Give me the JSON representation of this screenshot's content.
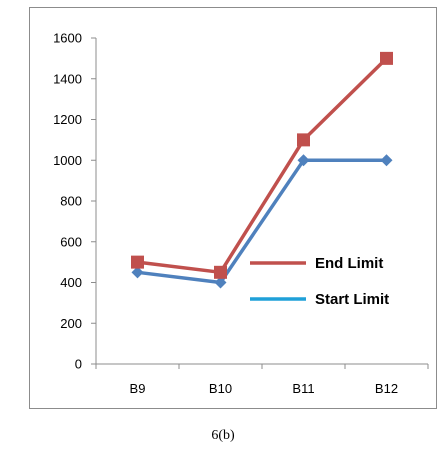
{
  "chart_data": {
    "type": "line",
    "categories": [
      "B9",
      "B10",
      "B11",
      "B12"
    ],
    "series": [
      {
        "name": "End Limit",
        "values": [
          500,
          450,
          1100,
          1500
        ],
        "color": "#c0504d",
        "marker": "square"
      },
      {
        "name": "Start Limit",
        "values": [
          450,
          400,
          1000,
          1000
        ],
        "color": "#4f81bd",
        "marker": "diamond"
      }
    ],
    "ylim": [
      0,
      1600
    ],
    "yticks": [
      0,
      200,
      400,
      600,
      800,
      1000,
      1200,
      1400,
      1600
    ],
    "legend_entries": [
      {
        "label": "End Limit",
        "color": "#c0504d"
      },
      {
        "label": "Start Limit",
        "color": "#1fa0d8"
      }
    ],
    "legend_position": "lower-right-inside",
    "grid": false
  },
  "caption": "6(b)"
}
